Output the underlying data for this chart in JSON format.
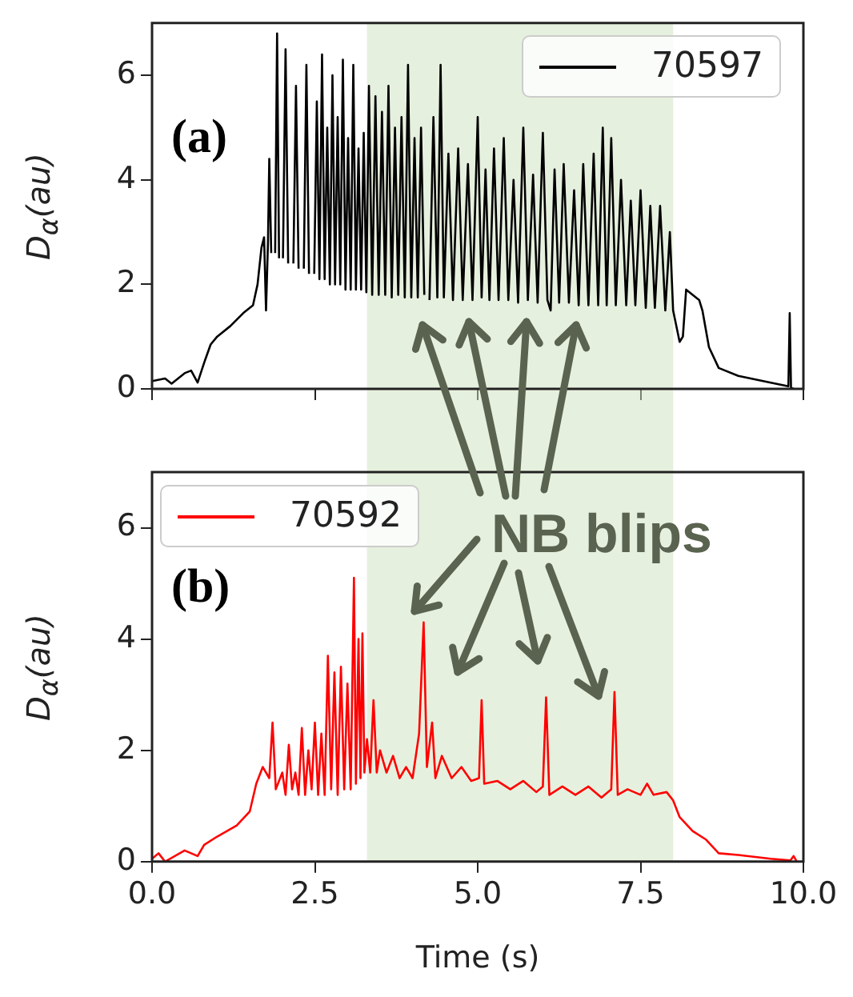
{
  "chart_data": [
    {
      "type": "line",
      "ylabel": "D$_{α}$(au)",
      "annotations": [
        "(a)"
      ],
      "legend": "top right",
      "tick_labels": "y",
      "xlim": [
        0,
        10
      ],
      "xticks": [
        {
          "value": 0,
          "label": null
        },
        {
          "value": 2.5,
          "label": null
        },
        {
          "value": 5,
          "label": null
        },
        {
          "value": 7.5,
          "label": null
        },
        {
          "value": 10,
          "label": null
        }
      ],
      "ylim": [
        0,
        7
      ],
      "yticks": [
        0,
        2,
        4,
        6
      ],
      "bands": [
        {
          "axis": "x",
          "from": 3.3,
          "to": 8.0,
          "color": "#cde1bd"
        }
      ],
      "series": [
        {
          "name": "70597",
          "color": "#000000",
          "x": [
            0,
            0.2,
            0.3,
            0.5,
            0.6,
            0.7,
            0.8,
            0.9,
            1.0,
            1.2,
            1.4,
            1.55,
            1.62,
            1.68,
            1.72,
            1.75,
            1.78,
            1.8,
            1.83,
            1.86,
            1.89,
            1.92,
            1.95,
            1.98,
            2.01,
            2.05,
            2.09,
            2.13,
            2.17,
            2.21,
            2.25,
            2.29,
            2.33,
            2.37,
            2.41,
            2.45,
            2.49,
            2.53,
            2.57,
            2.61,
            2.65,
            2.69,
            2.73,
            2.77,
            2.81,
            2.85,
            2.89,
            2.93,
            2.97,
            3.01,
            3.05,
            3.09,
            3.13,
            3.17,
            3.21,
            3.25,
            3.29,
            3.33,
            3.38,
            3.43,
            3.48,
            3.53,
            3.58,
            3.63,
            3.68,
            3.73,
            3.78,
            3.83,
            3.88,
            3.93,
            3.98,
            4.03,
            4.08,
            4.13,
            4.18,
            4.22,
            4.26,
            4.32,
            4.38,
            4.43,
            4.48,
            4.55,
            4.62,
            4.7,
            4.77,
            4.85,
            4.92,
            5.0,
            5.06,
            5.12,
            5.18,
            5.25,
            5.32,
            5.4,
            5.47,
            5.55,
            5.62,
            5.7,
            5.77,
            5.85,
            5.92,
            6.0,
            6.07,
            6.12,
            6.18,
            6.25,
            6.32,
            6.4,
            6.48,
            6.55,
            6.62,
            6.7,
            6.78,
            6.85,
            6.92,
            6.98,
            7.05,
            7.12,
            7.2,
            7.28,
            7.35,
            7.42,
            7.5,
            7.58,
            7.65,
            7.72,
            7.8,
            7.88,
            7.95,
            8.0,
            8.1,
            8.15,
            8.2,
            8.3,
            8.4,
            8.45,
            8.55,
            8.7,
            9.0,
            9.5,
            9.77,
            9.79,
            9.81,
            9.85
          ],
          "values": [
            0.15,
            0.2,
            0.1,
            0.3,
            0.35,
            0.12,
            0.5,
            0.85,
            1.0,
            1.2,
            1.45,
            1.6,
            2.0,
            2.7,
            2.9,
            1.5,
            2.8,
            4.4,
            2.6,
            null,
            2.6,
            6.8,
            2.5,
            null,
            2.5,
            6.5,
            2.4,
            null,
            2.4,
            5.8,
            2.3,
            null,
            2.3,
            6.2,
            2.2,
            null,
            2.2,
            5.5,
            2.1,
            6.4,
            2.1,
            5.0,
            2.0,
            6.0,
            2.0,
            5.2,
            2.0,
            6.3,
            1.9,
            4.8,
            1.9,
            6.2,
            1.9,
            4.6,
            1.9,
            4.9,
            1.85,
            5.8,
            1.8,
            5.6,
            1.8,
            5.3,
            1.8,
            5.8,
            1.75,
            5.0,
            1.8,
            5.2,
            1.75,
            6.2,
            1.75,
            4.8,
            1.75,
            5.0,
            1.8,
            null,
            1.7,
            5.2,
            1.75,
            6.2,
            1.75,
            4.5,
            1.7,
            4.6,
            1.7,
            4.3,
            1.7,
            5.2,
            1.75,
            4.2,
            1.7,
            4.6,
            1.7,
            4.8,
            1.7,
            4.0,
            1.65,
            5.0,
            1.7,
            4.1,
            1.65,
            4.9,
            1.7,
            1.5,
            4.2,
            1.65,
            4.3,
            1.65,
            3.8,
            1.6,
            4.3,
            1.6,
            4.5,
            1.6,
            5.0,
            1.6,
            4.8,
            1.6,
            4.0,
            1.6,
            3.6,
            1.6,
            3.8,
            1.55,
            3.5,
            1.55,
            3.5,
            1.5,
            3.0,
            1.5,
            0.9,
            1.0,
            1.9,
            1.8,
            1.7,
            1.5,
            0.8,
            0.4,
            0.25,
            0.12,
            0.05,
            1.45,
            0.02,
            0.0
          ]
        }
      ]
    },
    {
      "type": "line",
      "ylabel": "D$_{α}$(au)",
      "xlabel": "Time (s)",
      "annotations": [
        "(b)",
        "NB blips"
      ],
      "legend": "top left",
      "xlim": [
        0,
        10
      ],
      "xticks": [
        {
          "value": 0,
          "label": "0.0"
        },
        {
          "value": 2.5,
          "label": "2.5"
        },
        {
          "value": 5,
          "label": "5.0"
        },
        {
          "value": 7.5,
          "label": "7.5"
        },
        {
          "value": 10,
          "label": "10.0"
        }
      ],
      "ylim": [
        0,
        7
      ],
      "yticks": [
        0,
        2,
        4,
        6
      ],
      "bands": [
        {
          "axis": "x",
          "from": 3.3,
          "to": 8.0,
          "color": "#cde1bd"
        }
      ],
      "series": [
        {
          "name": "70592",
          "color": "#ff0000",
          "x": [
            0,
            0.1,
            0.2,
            0.5,
            0.7,
            0.8,
            1.0,
            1.3,
            1.5,
            1.6,
            1.7,
            1.8,
            1.85,
            1.9,
            2.0,
            2.05,
            2.1,
            2.15,
            2.2,
            2.25,
            2.3,
            2.35,
            2.4,
            2.45,
            2.5,
            2.55,
            2.6,
            2.65,
            2.7,
            2.75,
            2.8,
            2.85,
            2.9,
            2.95,
            3.0,
            3.05,
            3.1,
            3.13,
            3.17,
            3.2,
            3.23,
            3.26,
            3.3,
            3.35,
            3.4,
            3.45,
            3.5,
            3.6,
            3.7,
            3.8,
            3.9,
            4.0,
            4.1,
            4.17,
            4.22,
            4.3,
            4.35,
            4.45,
            4.6,
            4.75,
            4.9,
            5.02,
            5.06,
            5.1,
            5.3,
            5.5,
            5.7,
            5.9,
            6.0,
            6.05,
            6.1,
            6.3,
            6.5,
            6.7,
            6.9,
            7.05,
            7.1,
            7.15,
            7.3,
            7.5,
            7.6,
            7.7,
            7.9,
            8.0,
            8.1,
            8.3,
            8.5,
            8.7,
            9.0,
            9.5,
            9.8,
            9.85,
            9.9
          ],
          "values": [
            0.05,
            0.15,
            0.0,
            0.2,
            0.1,
            0.3,
            0.45,
            0.65,
            0.9,
            1.4,
            1.7,
            1.5,
            2.5,
            1.3,
            1.6,
            1.2,
            2.1,
            1.3,
            1.6,
            1.2,
            2.4,
            1.2,
            2.0,
            1.3,
            2.5,
            1.2,
            2.3,
            1.2,
            3.7,
            1.3,
            3.4,
            1.2,
            3.5,
            1.3,
            3.2,
            1.3,
            5.1,
            1.4,
            4.0,
            1.5,
            4.1,
            1.6,
            2.2,
            1.6,
            2.9,
            1.6,
            2.0,
            1.6,
            1.9,
            1.5,
            1.7,
            1.5,
            2.3,
            4.3,
            1.7,
            2.5,
            1.5,
            1.9,
            1.5,
            1.7,
            1.45,
            1.5,
            2.9,
            1.4,
            1.45,
            1.3,
            1.45,
            1.25,
            1.35,
            2.95,
            1.2,
            1.35,
            1.2,
            1.35,
            1.15,
            1.3,
            3.05,
            1.2,
            1.3,
            1.2,
            1.4,
            1.2,
            1.25,
            1.1,
            0.8,
            0.55,
            0.4,
            0.15,
            0.12,
            0.05,
            0.02,
            0.1,
            0.0
          ]
        }
      ]
    }
  ]
}
